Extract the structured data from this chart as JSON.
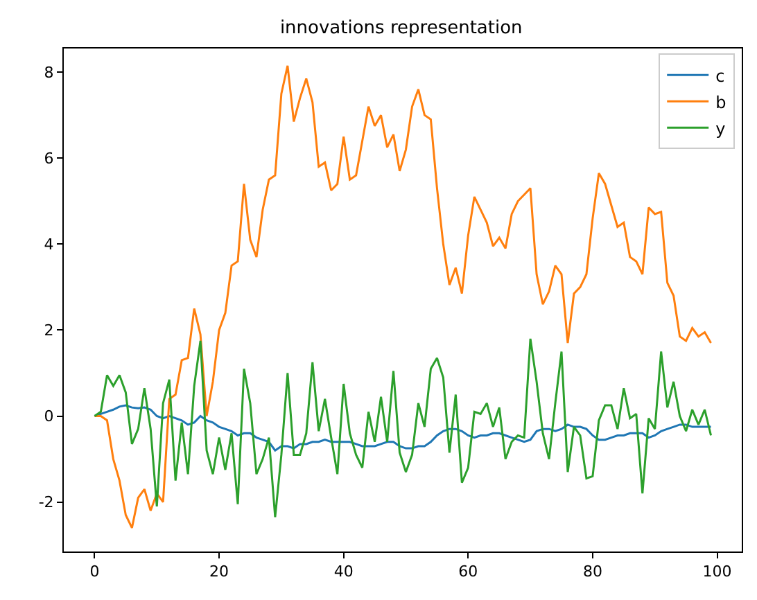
{
  "chart_data": {
    "type": "line",
    "title": "innovations representation",
    "x": [
      0,
      1,
      2,
      3,
      4,
      5,
      6,
      7,
      8,
      9,
      10,
      11,
      12,
      13,
      14,
      15,
      16,
      17,
      18,
      19,
      20,
      21,
      22,
      23,
      24,
      25,
      26,
      27,
      28,
      29,
      30,
      31,
      32,
      33,
      34,
      35,
      36,
      37,
      38,
      39,
      40,
      41,
      42,
      43,
      44,
      45,
      46,
      47,
      48,
      49,
      50,
      51,
      52,
      53,
      54,
      55,
      56,
      57,
      58,
      59,
      60,
      61,
      62,
      63,
      64,
      65,
      66,
      67,
      68,
      69,
      70,
      71,
      72,
      73,
      74,
      75,
      76,
      77,
      78,
      79,
      80,
      81,
      82,
      83,
      84,
      85,
      86,
      87,
      88,
      89,
      90,
      91,
      92,
      93,
      94,
      95,
      96,
      97,
      98,
      99
    ],
    "series": [
      {
        "name": "c",
        "color": "#1f77b4",
        "values": [
          0,
          0.05,
          0.1,
          0.15,
          0.22,
          0.25,
          0.2,
          0.18,
          0.2,
          0.15,
          0.0,
          -0.05,
          0.0,
          -0.05,
          -0.1,
          -0.2,
          -0.15,
          0.0,
          -0.1,
          -0.15,
          -0.25,
          -0.3,
          -0.35,
          -0.45,
          -0.4,
          -0.4,
          -0.5,
          -0.55,
          -0.6,
          -0.8,
          -0.7,
          -0.7,
          -0.75,
          -0.65,
          -0.65,
          -0.6,
          -0.6,
          -0.55,
          -0.6,
          -0.6,
          -0.6,
          -0.6,
          -0.65,
          -0.7,
          -0.7,
          -0.7,
          -0.65,
          -0.6,
          -0.6,
          -0.7,
          -0.75,
          -0.75,
          -0.7,
          -0.7,
          -0.6,
          -0.45,
          -0.35,
          -0.3,
          -0.3,
          -0.35,
          -0.45,
          -0.5,
          -0.45,
          -0.45,
          -0.4,
          -0.4,
          -0.45,
          -0.5,
          -0.55,
          -0.6,
          -0.55,
          -0.35,
          -0.3,
          -0.3,
          -0.35,
          -0.3,
          -0.2,
          -0.25,
          -0.25,
          -0.3,
          -0.45,
          -0.55,
          -0.55,
          -0.5,
          -0.45,
          -0.45,
          -0.4,
          -0.4,
          -0.4,
          -0.5,
          -0.45,
          -0.35,
          -0.3,
          -0.25,
          -0.2,
          -0.2,
          -0.25,
          -0.25,
          -0.25,
          -0.25
        ]
      },
      {
        "name": "b",
        "color": "#ff7f0e",
        "values": [
          0,
          0,
          -0.1,
          -1,
          -1.5,
          -2.3,
          -2.6,
          -1.9,
          -1.7,
          -2.2,
          -1.8,
          -2.0,
          0.4,
          0.5,
          1.3,
          1.35,
          2.5,
          1.9,
          0.0,
          0.8,
          2.0,
          2.4,
          3.5,
          3.6,
          5.4,
          4.1,
          3.7,
          4.8,
          5.5,
          5.6,
          7.5,
          8.15,
          6.85,
          7.4,
          7.85,
          7.3,
          5.8,
          5.9,
          5.25,
          5.4,
          6.5,
          5.5,
          5.6,
          6.4,
          7.2,
          6.75,
          7.0,
          6.25,
          6.55,
          5.7,
          6.2,
          7.2,
          7.6,
          7.0,
          6.9,
          5.3,
          4.0,
          3.05,
          3.45,
          2.85,
          4.2,
          5.1,
          4.8,
          4.5,
          3.95,
          4.15,
          3.9,
          4.7,
          5.0,
          5.15,
          5.3,
          3.3,
          2.6,
          2.9,
          3.5,
          3.3,
          1.7,
          2.85,
          3.0,
          3.3,
          4.6,
          5.65,
          5.4,
          4.9,
          4.4,
          4.5,
          3.7,
          3.6,
          3.3,
          4.85,
          4.7,
          4.75,
          3.1,
          2.8,
          1.85,
          1.75,
          2.05,
          1.85,
          1.95,
          1.7
        ]
      },
      {
        "name": "y",
        "color": "#2ca02c",
        "values": [
          0,
          0.1,
          0.95,
          0.7,
          0.95,
          0.55,
          -0.65,
          -0.3,
          0.65,
          -0.3,
          -2.1,
          0.3,
          0.85,
          -1.5,
          -0.15,
          -1.35,
          0.7,
          1.75,
          -0.8,
          -1.35,
          -0.5,
          -1.25,
          -0.4,
          -2.05,
          1.1,
          0.3,
          -1.35,
          -1.0,
          -0.5,
          -2.35,
          -0.9,
          1.0,
          -0.9,
          -0.9,
          -0.4,
          1.25,
          -0.35,
          0.4,
          -0.5,
          -1.35,
          0.75,
          -0.4,
          -0.9,
          -1.2,
          0.1,
          -0.6,
          0.45,
          -0.6,
          1.05,
          -0.85,
          -1.3,
          -0.9,
          0.3,
          -0.25,
          1.1,
          1.35,
          0.9,
          -0.85,
          0.5,
          -1.55,
          -1.2,
          0.1,
          0.05,
          0.3,
          -0.25,
          0.2,
          -1.0,
          -0.6,
          -0.45,
          -0.5,
          1.8,
          0.8,
          -0.4,
          -1.0,
          0.3,
          1.5,
          -1.3,
          -0.25,
          -0.45,
          -1.45,
          -1.4,
          -0.1,
          0.25,
          0.25,
          -0.3,
          0.65,
          -0.05,
          0.05,
          -1.8,
          -0.05,
          -0.3,
          1.5,
          0.2,
          0.8,
          0.0,
          -0.35,
          0.15,
          -0.2,
          0.15,
          -0.45
        ]
      }
    ],
    "xlim": [
      -4.95,
      103.95
    ],
    "xticks": [
      0,
      20,
      40,
      60,
      80,
      100
    ],
    "ylim": [
      -3.15,
      8.55
    ],
    "yticks": [
      -2,
      0,
      2,
      4,
      6,
      8
    ],
    "legend": "top right",
    "line_style": "solid",
    "marker": "none"
  }
}
